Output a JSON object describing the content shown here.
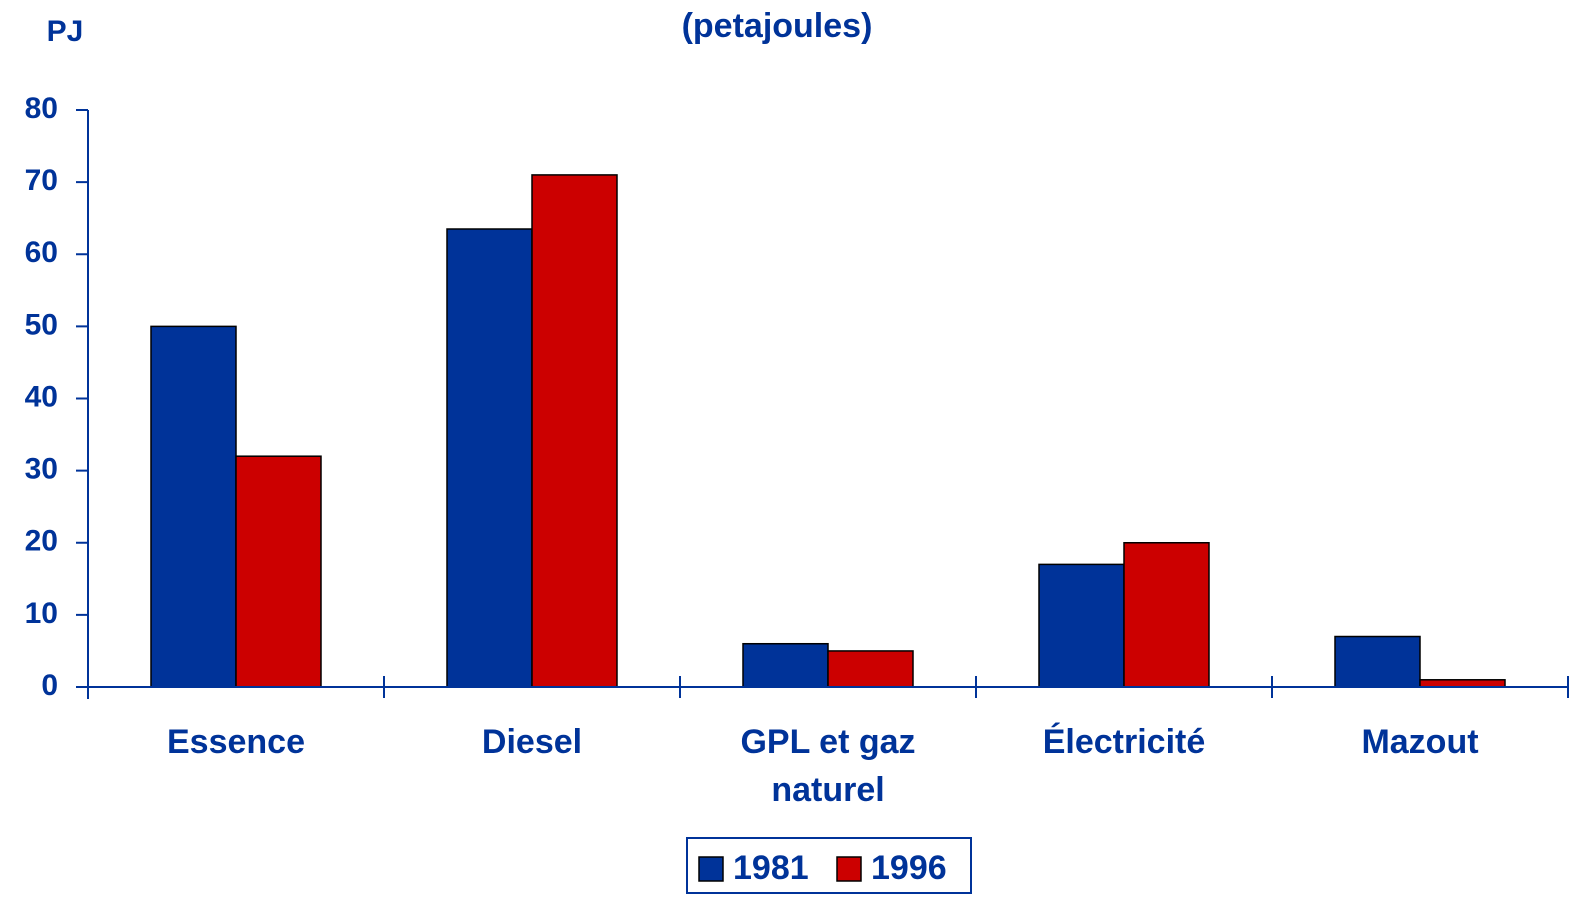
{
  "chart_data": {
    "type": "bar",
    "title": "(petajoules)",
    "y_label": "PJ",
    "categories": [
      "Essence",
      "Diesel",
      "GPL et gaz naturel",
      "Électricité",
      "Mazout"
    ],
    "series": [
      {
        "name": "1981",
        "color": "#003399",
        "values": [
          50,
          63.5,
          6,
          17,
          7
        ]
      },
      {
        "name": "1996",
        "color": "#cc0000",
        "values": [
          32,
          71,
          5,
          20,
          1
        ]
      }
    ],
    "ylim": [
      0,
      80
    ],
    "yticks": [
      0,
      10,
      20,
      30,
      40,
      50,
      60,
      70,
      80
    ],
    "grid": false,
    "legend": "bottom"
  }
}
